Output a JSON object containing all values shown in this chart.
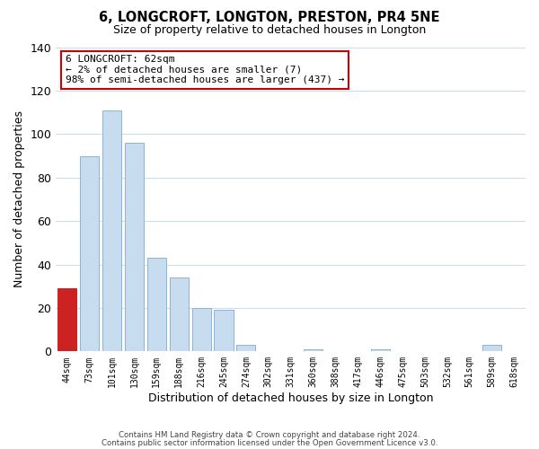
{
  "title": "6, LONGCROFT, LONGTON, PRESTON, PR4 5NE",
  "subtitle": "Size of property relative to detached houses in Longton",
  "xlabel": "Distribution of detached houses by size in Longton",
  "ylabel": "Number of detached properties",
  "categories": [
    "44sqm",
    "73sqm",
    "101sqm",
    "130sqm",
    "159sqm",
    "188sqm",
    "216sqm",
    "245sqm",
    "274sqm",
    "302sqm",
    "331sqm",
    "360sqm",
    "388sqm",
    "417sqm",
    "446sqm",
    "475sqm",
    "503sqm",
    "532sqm",
    "561sqm",
    "589sqm",
    "618sqm"
  ],
  "values": [
    29,
    90,
    111,
    96,
    43,
    34,
    20,
    19,
    3,
    0,
    0,
    1,
    0,
    0,
    1,
    0,
    0,
    0,
    0,
    3,
    0
  ],
  "bar_color": "#c8dcf0",
  "bar_edgecolor": "#8ab4d8",
  "highlight_bar_index": 0,
  "highlight_bar_color": "#cc2222",
  "highlight_bar_edgecolor": "#cc2222",
  "ylim": [
    0,
    140
  ],
  "yticks": [
    0,
    20,
    40,
    60,
    80,
    100,
    120,
    140
  ],
  "annotation_line1": "6 LONGCROFT: 62sqm",
  "annotation_line2": "← 2% of detached houses are smaller (7)",
  "annotation_line3": "98% of semi-detached houses are larger (437) →",
  "annotation_box_color": "#ffffff",
  "annotation_box_edgecolor": "#cc0000",
  "footer_line1": "Contains HM Land Registry data © Crown copyright and database right 2024.",
  "footer_line2": "Contains public sector information licensed under the Open Government Licence v3.0.",
  "background_color": "#ffffff",
  "grid_color": "#ccdded"
}
